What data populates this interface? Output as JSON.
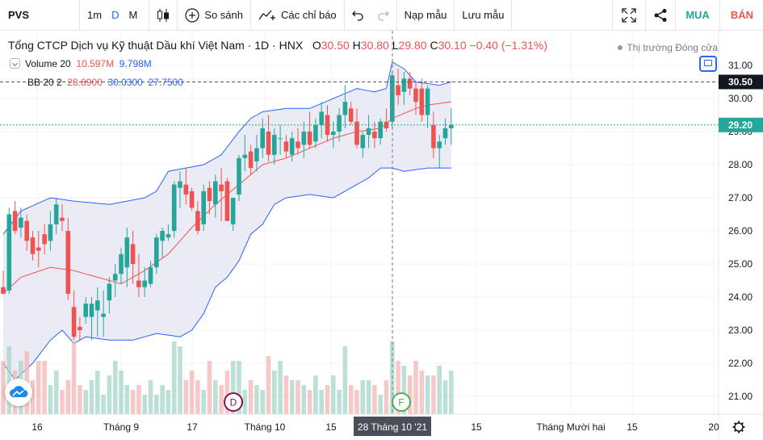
{
  "toolbar": {
    "symbol": "PVS",
    "intervals": [
      "1m",
      "D",
      "M"
    ],
    "active_interval": "D",
    "compare_label": "So sánh",
    "indicators_label": "Các chỉ báo",
    "templates_label": "Nạp mẫu",
    "save_label": "Lưu mẫu",
    "buy_label": "MUA",
    "sell_label": "BÁN"
  },
  "legend": {
    "title": "Tổng CTCP Dịch vụ Kỹ thuật Dầu khí Việt Nam · 1D · HNX",
    "open_label": "O",
    "open": "30.50",
    "high_label": "H",
    "high": "30.80",
    "low_label": "L",
    "low": "29.80",
    "close_label": "C",
    "close": "30.10",
    "change": "−0.40 (−1.31%)",
    "volume_label": "Volume 20",
    "volume_value": "10.597M",
    "volume_ma": "9.798M",
    "bb_label": "BB 20 2",
    "bb_basis": "28.8900",
    "bb_upper": "30.0300",
    "bb_lower": "27.7500",
    "market_status": "Thị trường Đóng cửa"
  },
  "price_axis": {
    "ticks": [
      "31.00",
      "30.00",
      "29.00",
      "28.00",
      "27.00",
      "26.00",
      "25.00",
      "24.00",
      "23.00",
      "22.00",
      "21.00"
    ],
    "last_price_label": "30.50",
    "crosshair_label": "29.20"
  },
  "time_axis": {
    "labels": [
      "16",
      "Tháng 9",
      "17",
      "Tháng 10",
      "15",
      "15",
      "Tháng Mười hai",
      "15",
      "20"
    ],
    "crosshair_label": "28 Tháng 10 '21"
  },
  "markers": {
    "dividend": "D",
    "financials": "F"
  },
  "colors": {
    "up": "#26a69a",
    "down": "#ef5350",
    "bb_upper": "#2962ff",
    "bb_basis": "#ef5350",
    "bb_fill": "#e8e8f5",
    "accent": "#2962ff",
    "buy": "#26a69a",
    "sell": "#ef5350",
    "marker_dividend": "#880e4f",
    "marker_financials": "#4caf50"
  },
  "chart_data": {
    "type": "candlestick",
    "price_range": [
      20.6,
      31.4
    ],
    "series": [
      {
        "name": "PVS",
        "candles": [
          [
            24.3,
            24.8,
            24.1,
            24.1
          ],
          [
            24.2,
            26.7,
            24.1,
            26.5
          ],
          [
            26.6,
            26.9,
            25.9,
            26.0
          ],
          [
            26.1,
            26.7,
            25.8,
            26.4
          ],
          [
            26.3,
            26.5,
            25.4,
            25.7
          ],
          [
            25.8,
            26.0,
            25.1,
            25.3
          ],
          [
            25.5,
            26.0,
            24.9,
            25.4
          ],
          [
            25.9,
            26.2,
            25.3,
            25.6
          ],
          [
            25.7,
            26.6,
            25.4,
            26.2
          ],
          [
            26.2,
            27.0,
            25.9,
            26.8
          ],
          [
            26.4,
            26.8,
            26.0,
            26.3
          ],
          [
            26.0,
            26.4,
            23.9,
            24.1
          ],
          [
            23.7,
            24.2,
            22.7,
            22.8
          ],
          [
            23.1,
            23.4,
            22.7,
            23.0
          ],
          [
            23.4,
            24.0,
            23.2,
            23.8
          ],
          [
            23.4,
            24.0,
            22.7,
            23.8
          ],
          [
            23.6,
            24.3,
            22.8,
            23.9
          ],
          [
            23.4,
            24.2,
            22.8,
            23.5
          ],
          [
            23.9,
            24.6,
            23.5,
            24.4
          ],
          [
            24.5,
            25.0,
            24.0,
            24.7
          ],
          [
            24.7,
            25.5,
            24.4,
            25.3
          ],
          [
            24.9,
            26.1,
            24.3,
            25.8
          ],
          [
            25.6,
            26.0,
            24.4,
            25.0
          ],
          [
            24.5,
            25.3,
            24.0,
            24.3
          ],
          [
            24.3,
            24.9,
            24.0,
            24.5
          ],
          [
            24.4,
            25.1,
            24.3,
            24.9
          ],
          [
            24.9,
            25.9,
            24.7,
            25.8
          ],
          [
            25.7,
            26.1,
            25.2,
            26.0
          ],
          [
            25.8,
            26.2,
            25.7,
            25.9
          ],
          [
            26.0,
            27.5,
            25.8,
            27.4
          ],
          [
            27.3,
            27.8,
            26.7,
            27.5
          ],
          [
            27.4,
            27.9,
            26.8,
            27.1
          ],
          [
            27.2,
            27.3,
            26.6,
            26.7
          ],
          [
            26.6,
            26.9,
            25.9,
            26.0
          ],
          [
            26.2,
            27.4,
            26.0,
            27.2
          ],
          [
            27.3,
            27.5,
            26.5,
            26.9
          ],
          [
            26.8,
            27.7,
            26.4,
            27.5
          ],
          [
            27.4,
            27.9,
            26.3,
            27.2
          ],
          [
            27.5,
            27.6,
            26.3,
            26.3
          ],
          [
            26.2,
            27.0,
            26.0,
            27.0
          ],
          [
            27.1,
            28.3,
            26.9,
            28.2
          ],
          [
            28.2,
            28.9,
            27.8,
            28.3
          ],
          [
            28.4,
            28.6,
            27.7,
            27.9
          ],
          [
            28.1,
            28.9,
            27.8,
            28.5
          ],
          [
            28.5,
            29.4,
            28.2,
            29.1
          ],
          [
            29.0,
            29.5,
            28.1,
            28.3
          ],
          [
            28.3,
            29.1,
            28.0,
            28.9
          ],
          [
            28.8,
            29.2,
            28.3,
            28.8
          ],
          [
            28.7,
            28.9,
            28.2,
            28.4
          ],
          [
            28.3,
            29.0,
            28.1,
            28.8
          ],
          [
            28.7,
            29.1,
            28.3,
            28.5
          ],
          [
            28.6,
            29.3,
            28.2,
            29.0
          ],
          [
            29.0,
            29.6,
            28.5,
            28.6
          ],
          [
            28.7,
            29.4,
            28.5,
            29.2
          ],
          [
            29.2,
            29.9,
            28.8,
            29.6
          ],
          [
            29.5,
            29.8,
            28.7,
            28.9
          ],
          [
            28.9,
            29.3,
            28.5,
            29.0
          ],
          [
            29.0,
            29.7,
            28.7,
            29.5
          ],
          [
            29.5,
            30.4,
            29.1,
            29.9
          ],
          [
            29.7,
            29.9,
            29.2,
            29.3
          ],
          [
            29.3,
            29.7,
            28.5,
            28.6
          ],
          [
            28.5,
            29.0,
            28.2,
            28.9
          ],
          [
            28.9,
            29.5,
            28.5,
            29.1
          ],
          [
            29.0,
            29.3,
            28.5,
            28.8
          ],
          [
            28.8,
            29.4,
            28.6,
            29.3
          ],
          [
            29.3,
            29.7,
            29.0,
            29.1
          ],
          [
            29.3,
            30.8,
            29.1,
            30.7
          ],
          [
            30.4,
            30.9,
            29.8,
            30.1
          ],
          [
            30.2,
            30.8,
            29.8,
            30.6
          ],
          [
            30.6,
            30.8,
            30.1,
            30.3
          ],
          [
            30.3,
            30.5,
            29.5,
            29.9
          ],
          [
            30.3,
            30.6,
            29.3,
            29.5
          ],
          [
            29.5,
            30.4,
            29.1,
            30.3
          ],
          [
            29.2,
            29.6,
            28.2,
            28.5
          ],
          [
            28.5,
            28.9,
            27.9,
            28.7
          ],
          [
            28.8,
            29.4,
            28.6,
            29.1
          ],
          [
            29.1,
            29.7,
            28.6,
            29.2
          ]
        ]
      }
    ],
    "volume_bars": [
      0.55,
      0.7,
      0.45,
      0.55,
      0.65,
      0.35,
      0.55,
      0.55,
      0.3,
      0.45,
      0.25,
      0.35,
      0.75,
      0.3,
      0.25,
      0.35,
      0.45,
      0.2,
      0.4,
      0.55,
      0.45,
      0.3,
      0.25,
      0.3,
      0.2,
      0.35,
      0.2,
      0.3,
      0.25,
      0.75,
      0.7,
      0.35,
      0.45,
      0.35,
      0.25,
      0.55,
      0.35,
      0.3,
      0.45,
      0.55,
      0.55,
      0.25,
      0.35,
      0.3,
      0.25,
      0.6,
      0.45,
      0.55,
      0.4,
      0.35,
      0.35,
      0.3,
      0.25,
      0.4,
      0.25,
      0.3,
      0.4,
      0.25,
      0.7,
      0.3,
      0.25,
      0.35,
      0.35,
      0.3,
      0.2,
      0.35,
      0.75,
      0.55,
      0.5,
      0.4,
      0.55,
      0.45,
      0.4,
      0.4,
      0.5,
      0.35,
      0.45
    ],
    "bollinger": {
      "upper": [
        [
          0,
          25.9
        ],
        [
          3,
          26.6
        ],
        [
          8,
          27.0
        ],
        [
          12,
          26.9
        ],
        [
          18,
          26.8
        ],
        [
          24,
          27.0
        ],
        [
          26,
          27.2
        ],
        [
          28,
          27.8
        ],
        [
          31,
          27.9
        ],
        [
          34,
          28.0
        ],
        [
          37,
          28.3
        ],
        [
          40,
          29.0
        ],
        [
          42,
          29.4
        ],
        [
          44,
          29.6
        ],
        [
          48,
          29.7
        ],
        [
          52,
          29.7
        ],
        [
          56,
          30.0
        ],
        [
          60,
          30.3
        ],
        [
          63,
          30.2
        ],
        [
          65,
          30.3
        ],
        [
          66,
          31.1
        ],
        [
          68,
          30.9
        ],
        [
          70,
          30.5
        ],
        [
          74,
          30.4
        ],
        [
          76,
          30.5
        ]
      ],
      "basis": [
        [
          0,
          24.1
        ],
        [
          3,
          24.6
        ],
        [
          8,
          24.9
        ],
        [
          12,
          24.8
        ],
        [
          16,
          24.6
        ],
        [
          20,
          24.4
        ],
        [
          24,
          24.8
        ],
        [
          28,
          25.3
        ],
        [
          32,
          26.1
        ],
        [
          36,
          26.8
        ],
        [
          40,
          27.4
        ],
        [
          44,
          28.0
        ],
        [
          48,
          28.2
        ],
        [
          52,
          28.5
        ],
        [
          56,
          28.8
        ],
        [
          60,
          29.0
        ],
        [
          64,
          29.1
        ],
        [
          66,
          29.4
        ],
        [
          70,
          29.7
        ],
        [
          72,
          29.8
        ],
        [
          76,
          29.9
        ]
      ],
      "lower": [
        [
          0,
          22.0
        ],
        [
          2,
          21.5
        ],
        [
          5,
          22.0
        ],
        [
          8,
          22.7
        ],
        [
          10,
          23.0
        ],
        [
          12,
          22.6
        ],
        [
          14,
          22.8
        ],
        [
          18,
          22.7
        ],
        [
          22,
          22.7
        ],
        [
          26,
          22.9
        ],
        [
          30,
          22.8
        ],
        [
          32,
          23.0
        ],
        [
          34,
          23.5
        ],
        [
          36,
          24.3
        ],
        [
          38,
          24.6
        ],
        [
          40,
          25.1
        ],
        [
          42,
          25.9
        ],
        [
          44,
          26.2
        ],
        [
          46,
          26.8
        ],
        [
          48,
          27.0
        ],
        [
          52,
          27.1
        ],
        [
          56,
          27.0
        ],
        [
          59,
          27.3
        ],
        [
          62,
          27.6
        ],
        [
          64,
          27.9
        ],
        [
          66,
          27.9
        ],
        [
          68,
          27.8
        ],
        [
          72,
          27.9
        ],
        [
          76,
          27.9
        ]
      ]
    }
  }
}
